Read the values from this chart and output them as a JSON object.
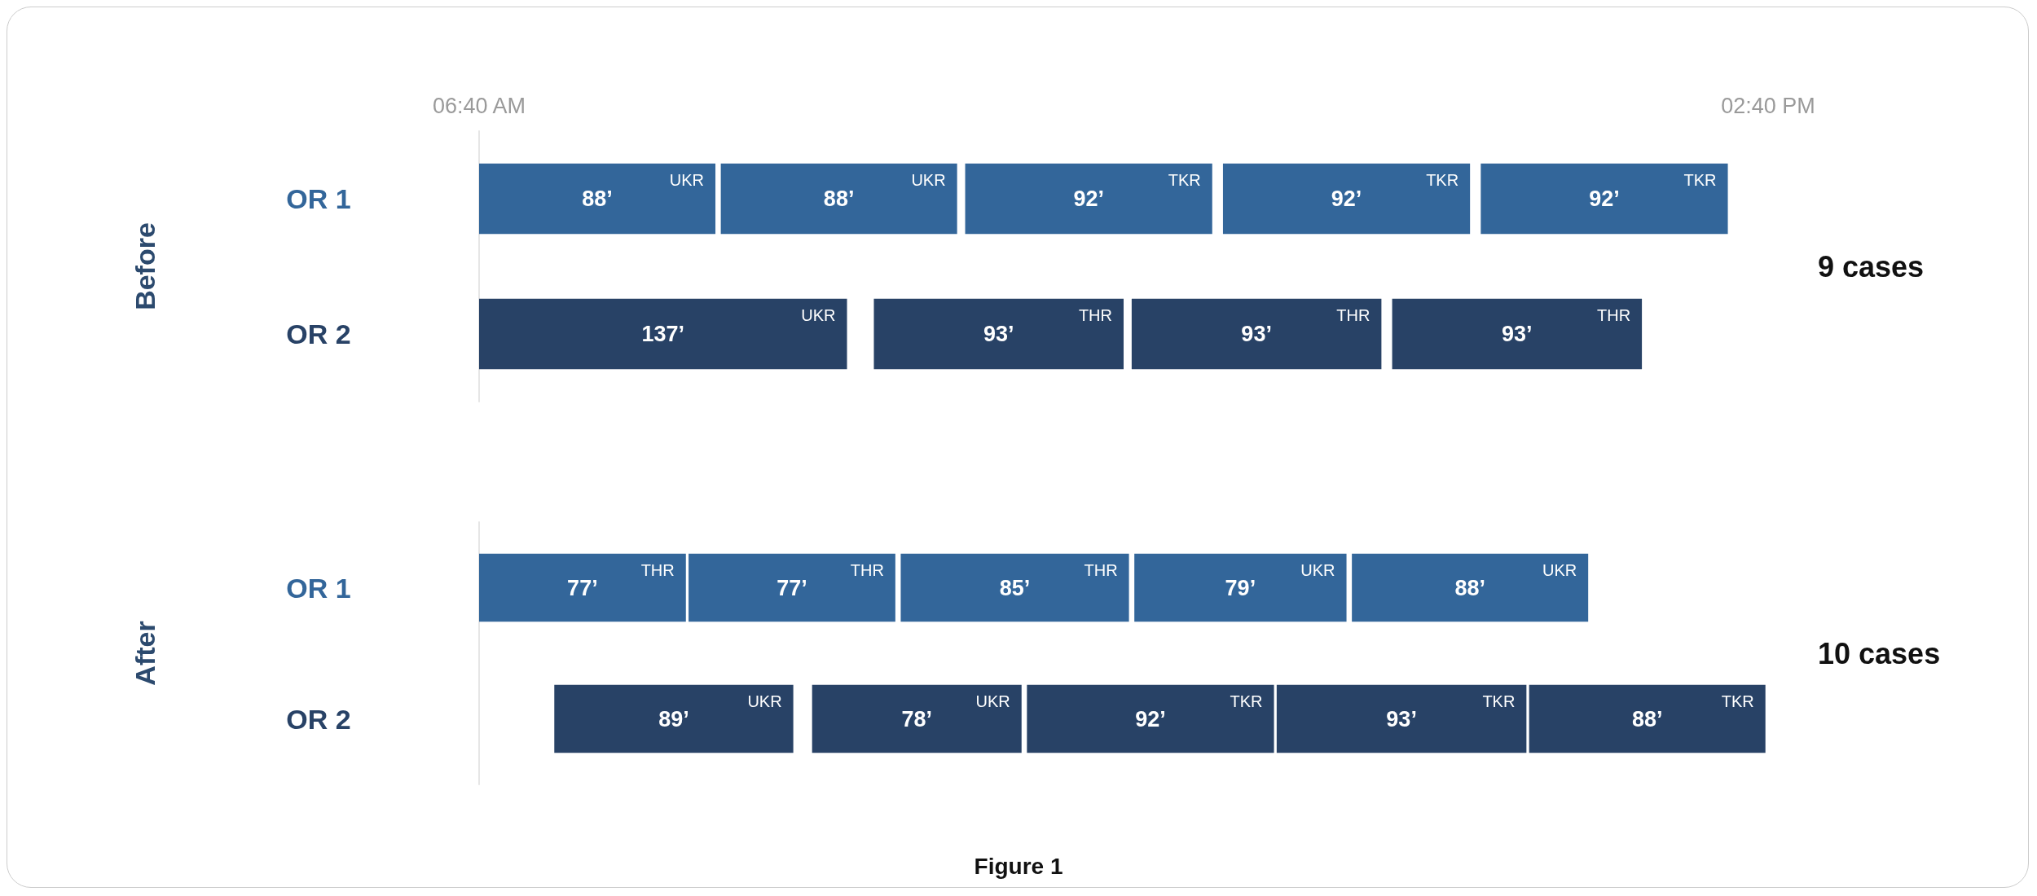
{
  "chart_data": [
    {
      "type": "bar",
      "orientation": "horizontal",
      "ylabel": "Before",
      "categories": [
        "OR 1",
        "OR 2"
      ],
      "xlim": [
        400,
        880
      ],
      "xticks": [
        {
          "value": 400,
          "label": "06:40 AM"
        },
        {
          "value": 880,
          "label": "02:40 PM"
        }
      ],
      "series": [
        {
          "colors": [
            "#33669a",
            "#284266"
          ],
          "base": [
            400,
            400
          ],
          "values": [
            88,
            137
          ],
          "value_labels": [
            "88’",
            "137’"
          ]
        },
        {
          "colors": [
            "#33669a",
            "#284266"
          ],
          "base": [
            490,
            547
          ],
          "values": [
            88,
            93
          ],
          "value_labels": [
            "88’",
            "93’"
          ]
        },
        {
          "colors": [
            "#33669a",
            "#284266"
          ],
          "base": [
            581,
            643
          ],
          "values": [
            92,
            93
          ],
          "value_labels": [
            "92’",
            "93’"
          ]
        },
        {
          "colors": [
            "#33669a",
            "#284266"
          ],
          "base": [
            677,
            740
          ],
          "values": [
            92,
            93
          ],
          "value_labels": [
            "92’",
            "93’"
          ]
        },
        {
          "colors": [
            "#33669a",
            null
          ],
          "base": [
            773,
            null
          ],
          "values": [
            92,
            null
          ],
          "value_labels": [
            "92’",
            null
          ]
        }
      ],
      "annotations": [
        "9 cases",
        {
          "text": "UKR",
          "x": 488,
          "y": "OR 1"
        },
        {
          "text": "UKR",
          "x": 578,
          "y": "OR 1"
        },
        {
          "text": "TKR",
          "x": 673,
          "y": "OR 1"
        },
        {
          "text": "TKR",
          "x": 769,
          "y": "OR 1"
        },
        {
          "text": "TKR",
          "x": 865,
          "y": "OR 1"
        },
        {
          "text": "UKR",
          "x": 537,
          "y": "OR 2"
        },
        {
          "text": "THR",
          "x": 640,
          "y": "OR 2"
        },
        {
          "text": "THR",
          "x": 736,
          "y": "OR 2"
        },
        {
          "text": "THR",
          "x": 833,
          "y": "OR 2"
        }
      ]
    },
    {
      "type": "bar",
      "orientation": "horizontal",
      "ylabel": "After",
      "categories": [
        "OR 1",
        "OR 2"
      ],
      "xlim": [
        400,
        880
      ],
      "tick_labels": "y",
      "series": [
        {
          "colors": [
            "#33669a",
            "#284266"
          ],
          "base": [
            400,
            428
          ],
          "values": [
            77,
            89
          ],
          "value_labels": [
            "77’",
            "89’"
          ]
        },
        {
          "colors": [
            "#33669a",
            "#284266"
          ],
          "base": [
            478,
            524
          ],
          "values": [
            77,
            78
          ],
          "value_labels": [
            "77’",
            "78’"
          ]
        },
        {
          "colors": [
            "#33669a",
            "#284266"
          ],
          "base": [
            557,
            604
          ],
          "values": [
            85,
            92
          ],
          "value_labels": [
            "85’",
            "92’"
          ]
        },
        {
          "colors": [
            "#33669a",
            "#284266"
          ],
          "base": [
            644,
            697
          ],
          "values": [
            79,
            93
          ],
          "value_labels": [
            "79’",
            "93’"
          ]
        },
        {
          "colors": [
            "#33669a",
            "#284266"
          ],
          "base": [
            725,
            791
          ],
          "values": [
            88,
            88
          ],
          "value_labels": [
            "88’",
            "88’"
          ]
        }
      ],
      "annotations": [
        "10 cases",
        "Figure 1",
        {
          "text": "THR",
          "x": 477,
          "y": "OR 1"
        },
        {
          "text": "THR",
          "x": 555,
          "y": "OR 1"
        },
        {
          "text": "THR",
          "x": 642,
          "y": "OR 1"
        },
        {
          "text": "UKR",
          "x": 723,
          "y": "OR 1"
        },
        {
          "text": "UKR",
          "x": 813,
          "y": "OR 1"
        },
        {
          "text": "UKR",
          "x": 517,
          "y": "OR 2"
        },
        {
          "text": "UKR",
          "x": 602,
          "y": "OR 2"
        },
        {
          "text": "TKR",
          "x": 696,
          "y": "OR 2"
        },
        {
          "text": "TKR",
          "x": 790,
          "y": "OR 2"
        },
        {
          "text": "TKR",
          "x": 879,
          "y": "OR 2"
        }
      ]
    }
  ]
}
